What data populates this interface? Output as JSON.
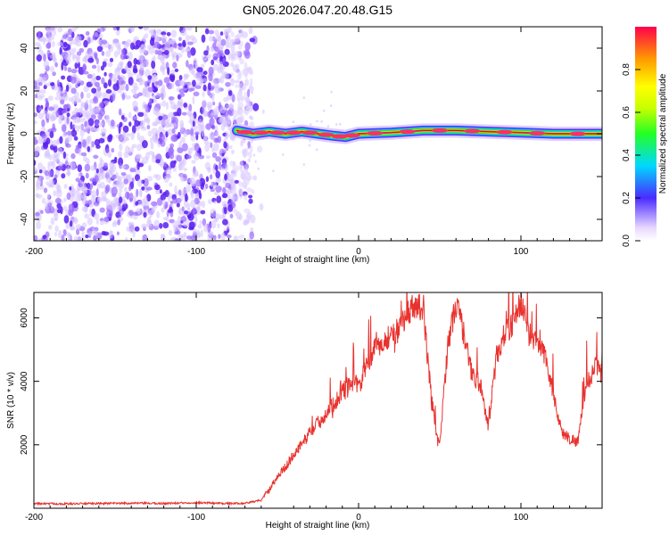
{
  "title": "GN05.2026.047.20.48.G15",
  "chart_data": [
    {
      "type": "heatmap",
      "xlabel": "Height of straight line (km)",
      "ylabel": "Frequency (Hz)",
      "xlim": [
        -200,
        150
      ],
      "ylim": [
        -50,
        50
      ],
      "x_ticks": [
        -200,
        -100,
        0,
        100
      ],
      "x_tick_labels": [
        "-200",
        "-100",
        "0",
        "100"
      ],
      "y_ticks": [
        -40,
        -20,
        0,
        20,
        40
      ],
      "y_tick_labels": [
        "-40",
        "-20",
        "0",
        "20",
        "40"
      ],
      "colorbar": {
        "label": "Normalized spectral amplitude",
        "range": [
          0,
          1
        ],
        "ticks": [
          0.0,
          0.2,
          0.4,
          0.6,
          0.8
        ],
        "tick_labels": [
          "0.0",
          "0.2",
          "0.4",
          "0.6",
          "0.8"
        ]
      },
      "noise_region_x": [
        -200,
        -65
      ],
      "signal_track": [
        {
          "x": -75,
          "f": 1.5
        },
        {
          "x": -65,
          "f": 0
        },
        {
          "x": -55,
          "f": 1
        },
        {
          "x": -45,
          "f": 0
        },
        {
          "x": -35,
          "f": 1
        },
        {
          "x": -25,
          "f": 0
        },
        {
          "x": -15,
          "f": -1
        },
        {
          "x": -8,
          "f": -1.5
        },
        {
          "x": 0,
          "f": 0
        },
        {
          "x": 20,
          "f": 0.5
        },
        {
          "x": 40,
          "f": 1.5
        },
        {
          "x": 60,
          "f": 1.5
        },
        {
          "x": 80,
          "f": 1
        },
        {
          "x": 100,
          "f": 0.5
        },
        {
          "x": 120,
          "f": 0
        },
        {
          "x": 150,
          "f": 0
        }
      ],
      "grid": false
    },
    {
      "type": "line",
      "xlabel": "Height of straight line (km)",
      "ylabel": "SNR (10 * v/v)",
      "xlim": [
        -200,
        150
      ],
      "ylim": [
        0,
        6800
      ],
      "x_ticks": [
        -200,
        -100,
        0,
        100
      ],
      "x_tick_labels": [
        "-200",
        "-100",
        "0",
        "100"
      ],
      "y_ticks": [
        2000,
        4000,
        6000
      ],
      "y_tick_labels": [
        "2000",
        "4000",
        "6000"
      ],
      "series": [
        {
          "color": "#e8322e",
          "x": [
            -200,
            -180,
            -160,
            -140,
            -120,
            -100,
            -80,
            -70,
            -60,
            -55,
            -50,
            -45,
            -40,
            -35,
            -30,
            -25,
            -20,
            -15,
            -10,
            -5,
            0,
            5,
            10,
            15,
            20,
            25,
            30,
            35,
            40,
            42,
            45,
            48,
            50,
            55,
            60,
            62,
            65,
            70,
            75,
            80,
            85,
            90,
            95,
            100,
            105,
            110,
            115,
            120,
            125,
            130,
            135,
            140,
            145,
            150
          ],
          "y": [
            150,
            140,
            150,
            160,
            150,
            180,
            150,
            160,
            250,
            600,
            1000,
            1300,
            1700,
            2000,
            2400,
            2700,
            3000,
            3300,
            3700,
            4000,
            3800,
            4500,
            5000,
            5200,
            5500,
            5600,
            6200,
            6400,
            6300,
            5000,
            3500,
            2200,
            2000,
            5200,
            6400,
            6200,
            5400,
            4200,
            3900,
            2600,
            4800,
            5500,
            5800,
            6500,
            5500,
            5200,
            4800,
            3600,
            2400,
            2200,
            2100,
            3800,
            4400,
            4700
          ]
        }
      ],
      "grid": false
    }
  ]
}
